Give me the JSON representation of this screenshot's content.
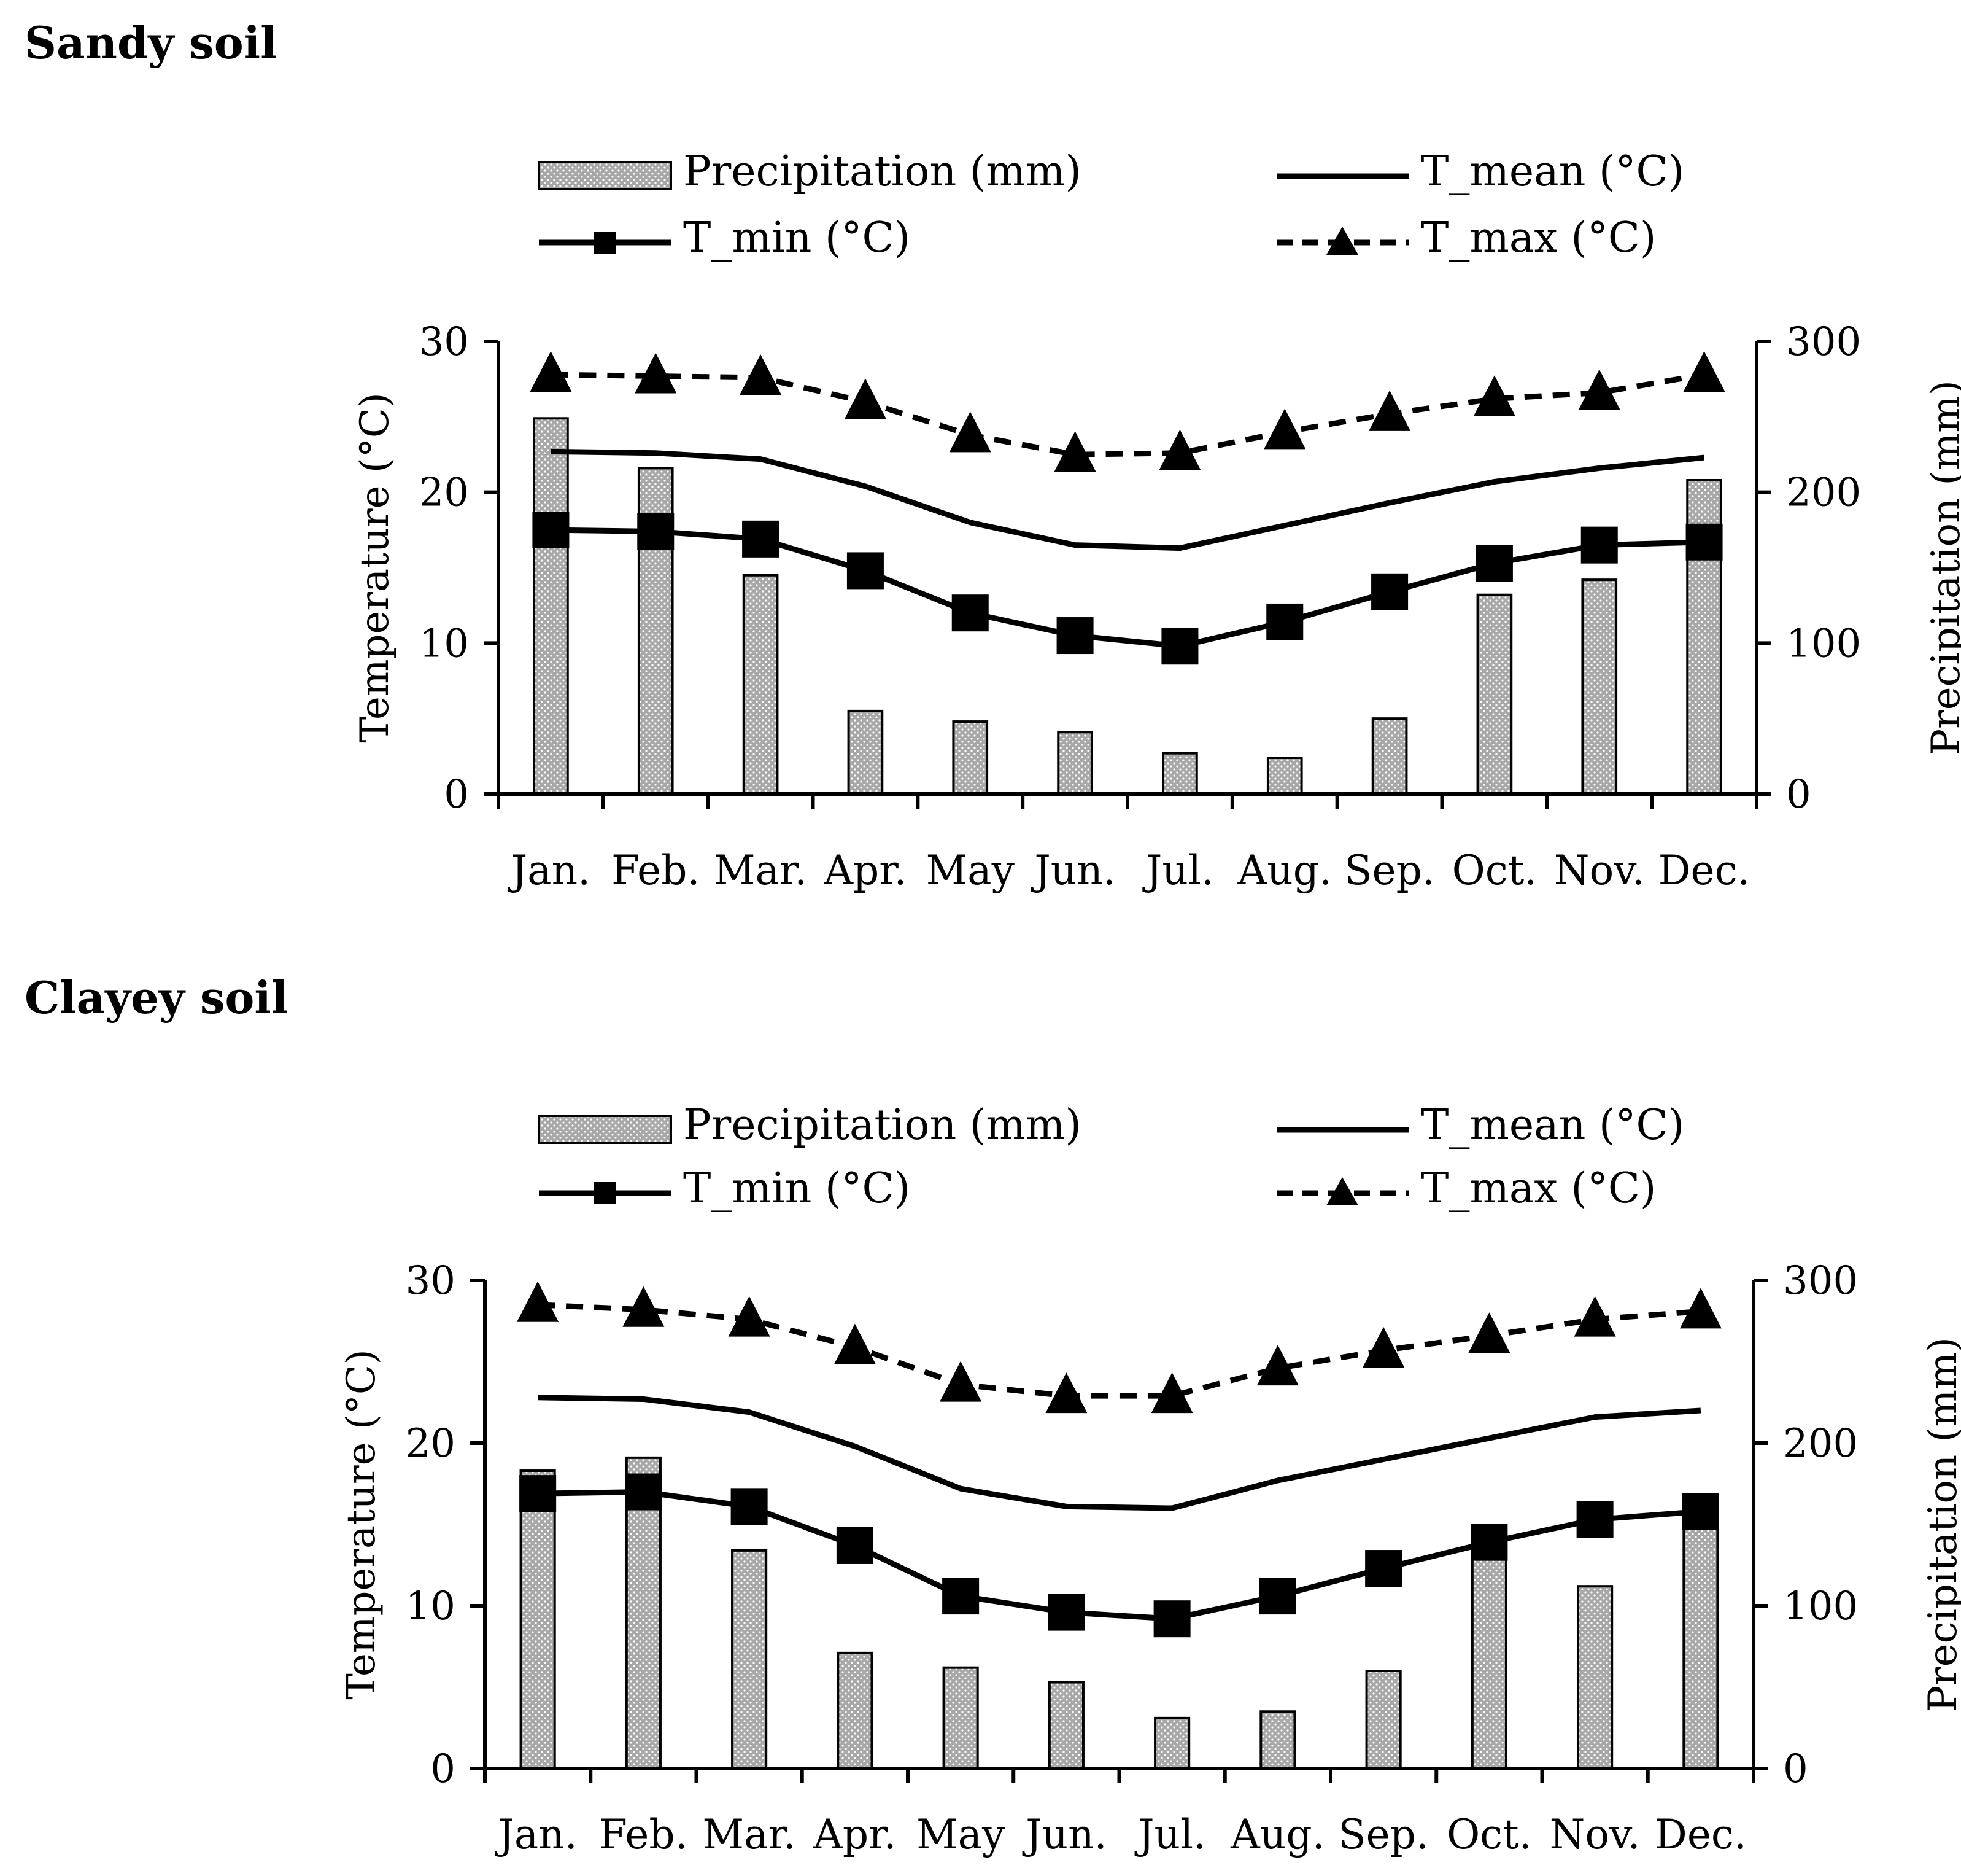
{
  "chart_data": [
    {
      "type": "bar+line",
      "title": "Sandy soil",
      "categories": [
        "Jan.",
        "Feb.",
        "Mar.",
        "Apr.",
        "May",
        "Jun.",
        "Jul.",
        "Aug.",
        "Sep.",
        "Oct.",
        "Nov.",
        "Dec."
      ],
      "ylabel": "Temperature (°C)",
      "y2label": "Precipitation (mm)",
      "ylim": [
        0,
        30
      ],
      "y2lim": [
        0,
        300
      ],
      "yticks": [
        "0",
        "10",
        "20",
        "30"
      ],
      "y2ticks": [
        "0",
        "100",
        "200",
        "300"
      ],
      "series": [
        {
          "name": "Precipitation (mm)",
          "kind": "bar",
          "axis": "right",
          "values": [
            249,
            216,
            145,
            55,
            48,
            41,
            27,
            24,
            50,
            132,
            142,
            208
          ]
        },
        {
          "name": "T_mean (°C)",
          "kind": "line",
          "axis": "left",
          "values": [
            22.7,
            22.6,
            22.2,
            20.4,
            18.0,
            16.5,
            16.3,
            17.8,
            19.3,
            20.7,
            21.6,
            22.3
          ]
        },
        {
          "name": "T_min (°C)",
          "kind": "line-square",
          "axis": "left",
          "values": [
            17.5,
            17.4,
            16.9,
            14.8,
            12.0,
            10.5,
            9.8,
            11.4,
            13.4,
            15.3,
            16.5,
            16.7
          ]
        },
        {
          "name": "T_max (°C)",
          "kind": "dashed-triangle",
          "axis": "left",
          "values": [
            27.8,
            27.7,
            27.6,
            26.0,
            23.8,
            22.5,
            22.6,
            24.0,
            25.2,
            26.2,
            26.6,
            27.8
          ]
        }
      ]
    },
    {
      "type": "bar+line",
      "title": "Clayey soil",
      "categories": [
        "Jan.",
        "Feb.",
        "Mar.",
        "Apr.",
        "May",
        "Jun.",
        "Jul.",
        "Aug.",
        "Sep.",
        "Oct.",
        "Nov.",
        "Dec."
      ],
      "ylabel": "Temperature (°C)",
      "y2label": "Precipitation (mm)",
      "ylim": [
        0,
        30
      ],
      "y2lim": [
        0,
        300
      ],
      "yticks": [
        "0",
        "10",
        "20",
        "30"
      ],
      "y2ticks": [
        "0",
        "100",
        "200",
        "300"
      ],
      "series": [
        {
          "name": "Precipitation (mm)",
          "kind": "bar",
          "axis": "right",
          "values": [
            183,
            191,
            134,
            71,
            62,
            53,
            31,
            35,
            60,
            136,
            112,
            159
          ]
        },
        {
          "name": "T_mean (°C)",
          "kind": "line",
          "axis": "left",
          "values": [
            22.8,
            22.7,
            21.9,
            19.8,
            17.2,
            16.1,
            16.0,
            17.7,
            19.0,
            20.3,
            21.6,
            22.0
          ]
        },
        {
          "name": "T_min (°C)",
          "kind": "line-square",
          "axis": "left",
          "values": [
            16.9,
            17.0,
            16.1,
            13.7,
            10.6,
            9.6,
            9.2,
            10.6,
            12.3,
            13.9,
            15.3,
            15.8
          ]
        },
        {
          "name": "T_max (°C)",
          "kind": "dashed-triangle",
          "axis": "left",
          "values": [
            28.5,
            28.2,
            27.6,
            25.9,
            23.6,
            22.9,
            22.9,
            24.6,
            25.7,
            26.6,
            27.6,
            28.1
          ]
        }
      ]
    }
  ],
  "colors": {
    "bar_fill": "#a8a8a8",
    "bar_dot": "#ffffff",
    "bar_stroke": "#000000",
    "line": "#000000"
  }
}
